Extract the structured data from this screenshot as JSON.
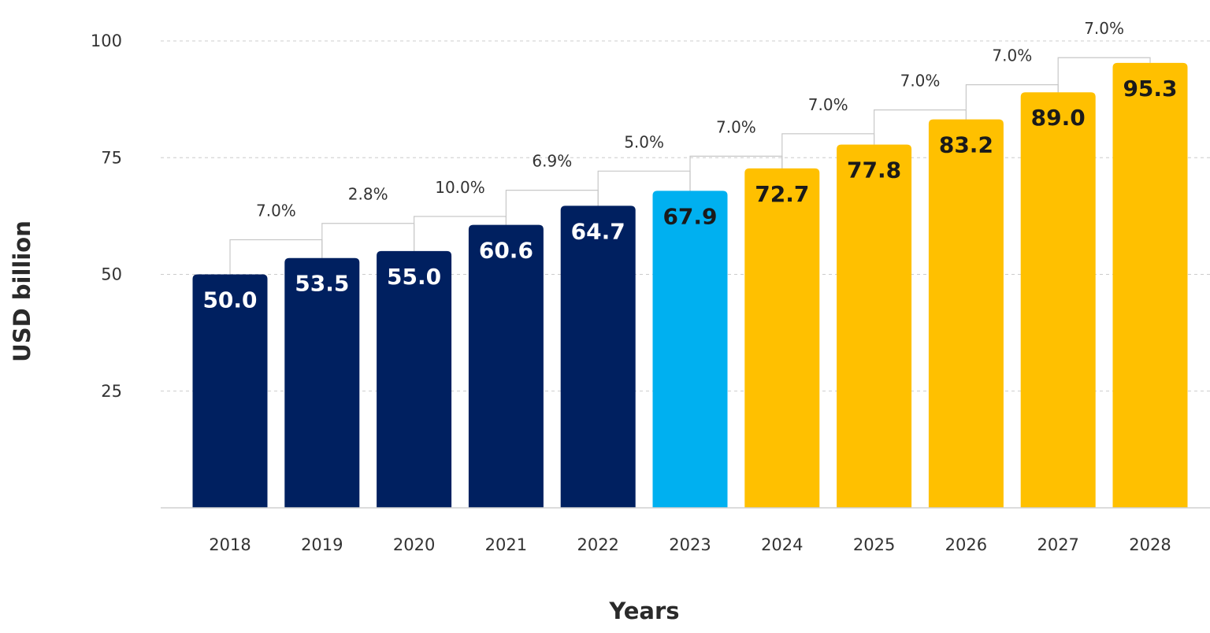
{
  "chart_data": {
    "type": "bar",
    "xlabel": "Years",
    "ylabel": "USD billion",
    "ylim": [
      0,
      100
    ],
    "yticks": [
      25,
      50,
      75,
      100
    ],
    "categories": [
      "2018",
      "2019",
      "2020",
      "2021",
      "2022",
      "2023",
      "2024",
      "2025",
      "2026",
      "2027",
      "2028"
    ],
    "values": [
      50.0,
      53.5,
      55.0,
      60.6,
      64.7,
      67.9,
      72.7,
      77.8,
      83.2,
      89.0,
      95.3
    ],
    "value_labels": [
      "50.0",
      "53.5",
      "55.0",
      "60.6",
      "64.7",
      "67.9",
      "72.7",
      "77.8",
      "83.2",
      "89.0",
      "95.3"
    ],
    "growth_labels": [
      "7.0%",
      "2.8%",
      "10.0%",
      "6.9%",
      "5.0%",
      "7.0%",
      "7.0%",
      "7.0%",
      "7.0%",
      "7.0%"
    ],
    "bar_kind": [
      "historical",
      "historical",
      "historical",
      "historical",
      "historical",
      "current",
      "forecast",
      "forecast",
      "forecast",
      "forecast",
      "forecast"
    ],
    "colors": {
      "historical": "#002060",
      "current": "#00b0f0",
      "forecast": "#ffc000",
      "label_on_dark": "#ffffff",
      "label_on_light": "#1a1a1a",
      "grid": "#cccccc",
      "connector": "#c8c8c8",
      "baseline": "#d0d0d0"
    }
  }
}
